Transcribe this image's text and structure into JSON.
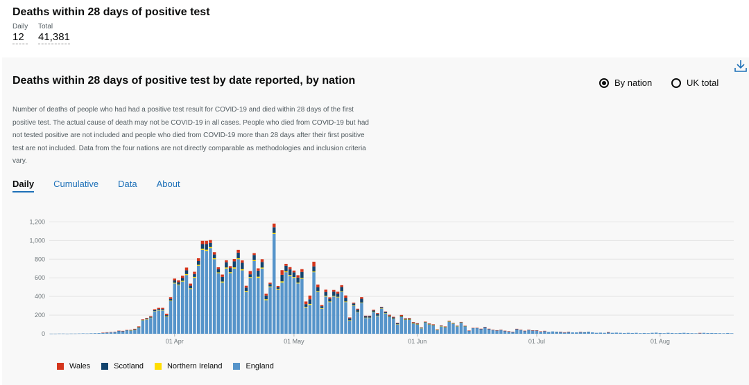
{
  "header": {
    "title": "Deaths within 28 days of positive test",
    "daily_label": "Daily",
    "daily_value": "12",
    "total_label": "Total",
    "total_value": "41,381"
  },
  "card": {
    "title": "Deaths within 28 days of positive test by date reported, by nation",
    "radio_by_nation": "By nation",
    "radio_uk_total": "UK total",
    "selected_radio": "by_nation",
    "description": "Number of deaths of people who had had a positive test result for COVID-19 and died within 28 days of the first positive test. The actual cause of death may not be COVID-19 in all cases. People who died from COVID-19 but had not tested positive are not included and people who died from COVID-19 more than 28 days after their first positive test are not included. Data from the four nations are not directly comparable as methodologies and inclusion criteria vary.",
    "tabs": [
      "Daily",
      "Cumulative",
      "Data",
      "About"
    ],
    "active_tab": "Daily",
    "download_icon": "download-icon"
  },
  "colors": {
    "wales": "#d4351c",
    "scotland": "#12436d",
    "northern_ireland": "#ffdd00",
    "england": "#5694ca",
    "link": "#1d70b8"
  },
  "chart_data": {
    "type": "bar",
    "stacked": true,
    "ylim": [
      0,
      1300
    ],
    "yticks": [
      "0",
      "200",
      "400",
      "600",
      "800",
      "1,000",
      "1,200"
    ],
    "x_tick_labels": [
      "01 Apr",
      "01 May",
      "01 Jun",
      "01 Jul",
      "01 Aug"
    ],
    "grid": true,
    "legend_position": "bottom-left",
    "series_names": [
      "Wales",
      "Scotland",
      "Northern Ireland",
      "England"
    ],
    "categories": [
      "01 Mar",
      "02 Mar",
      "03 Mar",
      "04 Mar",
      "05 Mar",
      "06 Mar",
      "07 Mar",
      "08 Mar",
      "09 Mar",
      "10 Mar",
      "11 Mar",
      "12 Mar",
      "13 Mar",
      "14 Mar",
      "15 Mar",
      "16 Mar",
      "17 Mar",
      "18 Mar",
      "19 Mar",
      "20 Mar",
      "21 Mar",
      "22 Mar",
      "23 Mar",
      "24 Mar",
      "25 Mar",
      "26 Mar",
      "27 Mar",
      "28 Mar",
      "29 Mar",
      "30 Mar",
      "31 Mar",
      "01 Apr",
      "02 Apr",
      "03 Apr",
      "04 Apr",
      "05 Apr",
      "06 Apr",
      "07 Apr",
      "08 Apr",
      "09 Apr",
      "10 Apr",
      "11 Apr",
      "12 Apr",
      "13 Apr",
      "14 Apr",
      "15 Apr",
      "16 Apr",
      "17 Apr",
      "18 Apr",
      "19 Apr",
      "20 Apr",
      "21 Apr",
      "22 Apr",
      "23 Apr",
      "24 Apr",
      "25 Apr",
      "26 Apr",
      "27 Apr",
      "28 Apr",
      "29 Apr",
      "30 Apr",
      "01 May",
      "02 May",
      "03 May",
      "04 May",
      "05 May",
      "06 May",
      "07 May",
      "08 May",
      "09 May",
      "10 May",
      "11 May",
      "12 May",
      "13 May",
      "14 May",
      "15 May",
      "16 May",
      "17 May",
      "18 May",
      "19 May",
      "20 May",
      "21 May",
      "22 May",
      "23 May",
      "24 May",
      "25 May",
      "26 May",
      "27 May",
      "28 May",
      "29 May",
      "30 May",
      "31 May",
      "01 Jun",
      "02 Jun",
      "03 Jun",
      "04 Jun",
      "05 Jun",
      "06 Jun",
      "07 Jun",
      "08 Jun",
      "09 Jun",
      "10 Jun",
      "11 Jun",
      "12 Jun",
      "13 Jun",
      "14 Jun",
      "15 Jun",
      "16 Jun",
      "17 Jun",
      "18 Jun",
      "19 Jun",
      "20 Jun",
      "21 Jun",
      "22 Jun",
      "23 Jun",
      "24 Jun",
      "25 Jun",
      "26 Jun",
      "27 Jun",
      "28 Jun",
      "29 Jun",
      "30 Jun",
      "01 Jul",
      "02 Jul",
      "03 Jul",
      "04 Jul",
      "05 Jul",
      "06 Jul",
      "07 Jul",
      "08 Jul",
      "09 Jul",
      "10 Jul",
      "11 Jul",
      "12 Jul",
      "13 Jul",
      "14 Jul",
      "15 Jul",
      "16 Jul",
      "17 Jul",
      "18 Jul",
      "19 Jul",
      "20 Jul",
      "21 Jul",
      "22 Jul",
      "23 Jul",
      "24 Jul",
      "25 Jul",
      "26 Jul",
      "27 Jul",
      "28 Jul",
      "29 Jul",
      "30 Jul",
      "31 Jul",
      "01 Aug",
      "02 Aug",
      "03 Aug",
      "04 Aug",
      "05 Aug",
      "06 Aug",
      "07 Aug",
      "08 Aug",
      "09 Aug",
      "10 Aug",
      "11 Aug",
      "12 Aug",
      "13 Aug",
      "14 Aug",
      "15 Aug",
      "16 Aug",
      "17 Aug",
      "18 Aug",
      "19 Aug"
    ],
    "series": [
      {
        "name": "Wales",
        "values": [
          0,
          0,
          0,
          0,
          0,
          0,
          0,
          0,
          0,
          0,
          0,
          0,
          0,
          1,
          1,
          1,
          2,
          2,
          3,
          3,
          4,
          5,
          6,
          5,
          7,
          8,
          10,
          12,
          12,
          15,
          18,
          20,
          20,
          25,
          30,
          22,
          25,
          30,
          35,
          35,
          30,
          25,
          20,
          25,
          22,
          20,
          25,
          30,
          25,
          20,
          35,
          20,
          25,
          30,
          20,
          15,
          40,
          15,
          50,
          20,
          25,
          20,
          25,
          30,
          28,
          40,
          50,
          30,
          12,
          25,
          15,
          18,
          20,
          20,
          25,
          10,
          10,
          10,
          18,
          6,
          6,
          8,
          8,
          5,
          6,
          9,
          7,
          6,
          10,
          6,
          8,
          6,
          6,
          3,
          4,
          5,
          5,
          2,
          4,
          4,
          4,
          3,
          3,
          3,
          3,
          3,
          1,
          2,
          2,
          2,
          3,
          2,
          2,
          2,
          1,
          1,
          1,
          2,
          2,
          1,
          2,
          1,
          1,
          1,
          1,
          0,
          0,
          0,
          1,
          1,
          1,
          0,
          0,
          1,
          0,
          0,
          0,
          0,
          0,
          0,
          1,
          0,
          0,
          0,
          0,
          0,
          0,
          0,
          0,
          0,
          0,
          0,
          0,
          0,
          0,
          0,
          0,
          0,
          0,
          0,
          0,
          0,
          0,
          1,
          0,
          0,
          0,
          0,
          0,
          0,
          0,
          0
        ]
      },
      {
        "name": "Scotland",
        "values": [
          0,
          0,
          0,
          0,
          0,
          0,
          0,
          0,
          0,
          0,
          0,
          0,
          0,
          0,
          0,
          0,
          0,
          1,
          2,
          3,
          3,
          5,
          7,
          4,
          6,
          8,
          10,
          12,
          12,
          15,
          18,
          25,
          25,
          30,
          40,
          28,
          30,
          40,
          50,
          60,
          45,
          40,
          35,
          50,
          55,
          45,
          65,
          60,
          70,
          35,
          30,
          55,
          65,
          60,
          40,
          25,
          60,
          20,
          70,
          60,
          60,
          50,
          55,
          65,
          30,
          50,
          55,
          40,
          20,
          40,
          30,
          45,
          35,
          45,
          40,
          20,
          20,
          25,
          40,
          15,
          15,
          15,
          20,
          10,
          10,
          12,
          12,
          10,
          10,
          8,
          8,
          7,
          6,
          5,
          5,
          5,
          5,
          4,
          4,
          4,
          4,
          3,
          3,
          3,
          2,
          2,
          2,
          2,
          2,
          2,
          1,
          1,
          1,
          1,
          1,
          1,
          1,
          1,
          1,
          1,
          1,
          1,
          1,
          0,
          0,
          0,
          0,
          1,
          1,
          0,
          1,
          0,
          0,
          0,
          1,
          1,
          0,
          0,
          0,
          0,
          1,
          0,
          0,
          0,
          0,
          0,
          0,
          0,
          0,
          0,
          0,
          0,
          0,
          0,
          0,
          0,
          0,
          0,
          0,
          0,
          0,
          0,
          0,
          0,
          0,
          0,
          0,
          0,
          0,
          0,
          0,
          0
        ]
      },
      {
        "name": "Northern Ireland",
        "values": [
          0,
          0,
          0,
          0,
          0,
          0,
          0,
          0,
          0,
          0,
          0,
          0,
          0,
          0,
          0,
          0,
          0,
          0,
          0,
          0,
          1,
          1,
          1,
          1,
          2,
          3,
          3,
          4,
          4,
          5,
          6,
          7,
          8,
          8,
          10,
          8,
          10,
          10,
          12,
          12,
          10,
          10,
          8,
          10,
          11,
          10,
          12,
          10,
          12,
          10,
          8,
          10,
          12,
          10,
          10,
          8,
          12,
          8,
          12,
          10,
          10,
          8,
          8,
          8,
          8,
          10,
          8,
          8,
          6,
          8,
          6,
          7,
          6,
          6,
          6,
          5,
          4,
          4,
          5,
          3,
          3,
          4,
          4,
          3,
          3,
          3,
          3,
          2,
          2,
          2,
          2,
          2,
          1,
          1,
          1,
          1,
          1,
          1,
          1,
          1,
          1,
          1,
          1,
          1,
          1,
          0,
          0,
          0,
          0,
          0,
          0,
          0,
          0,
          0,
          0,
          0,
          0,
          0,
          0,
          0,
          0,
          0,
          0,
          0,
          0,
          0,
          0,
          0,
          0,
          0,
          0,
          0,
          0,
          0,
          0,
          0,
          0,
          0,
          0,
          0,
          0,
          0,
          0,
          0,
          0,
          0,
          0,
          0,
          0,
          0,
          0,
          0,
          0,
          0,
          0,
          0,
          0,
          0,
          0,
          0,
          0,
          0,
          0,
          0,
          0,
          0,
          0,
          0,
          0,
          0,
          0,
          0
        ]
      },
      {
        "name": "England",
        "values": [
          1,
          1,
          2,
          2,
          1,
          2,
          2,
          3,
          4,
          3,
          5,
          6,
          7,
          11,
          15,
          18,
          20,
          30,
          26,
          35,
          35,
          42,
          65,
          145,
          155,
          170,
          240,
          250,
          250,
          180,
          350,
          540,
          520,
          560,
          630,
          480,
          600,
          730,
          900,
          890,
          920,
          800,
          650,
          550,
          700,
          650,
          700,
          800,
          680,
          450,
          600,
          780,
          600,
          700,
          360,
          500,
          1070,
          470,
          550,
          660,
          620,
          600,
          540,
          590,
          280,
          310,
          660,
          450,
          270,
          400,
          340,
          400,
          390,
          450,
          340,
          140,
          300,
          230,
          330,
          170,
          170,
          230,
          190,
          270,
          220,
          180,
          160,
          100,
          180,
          150,
          150,
          110,
          100,
          60,
          120,
          100,
          90,
          40,
          80,
          70,
          130,
          110,
          80,
          120,
          80,
          30,
          60,
          60,
          50,
          70,
          50,
          40,
          35,
          40,
          30,
          25,
          20,
          50,
          40,
          30,
          40,
          35,
          35,
          25,
          30,
          20,
          25,
          20,
          20,
          15,
          20,
          15,
          15,
          20,
          15,
          20,
          15,
          10,
          12,
          10,
          15,
          10,
          12,
          10,
          8,
          10,
          8,
          10,
          6,
          8,
          6,
          10,
          12,
          8,
          6,
          10,
          8,
          6,
          8,
          10,
          8,
          6,
          5,
          8,
          10,
          8,
          8,
          7,
          6,
          5,
          8,
          5
        ]
      }
    ]
  },
  "chart_geometry_note": ""
}
